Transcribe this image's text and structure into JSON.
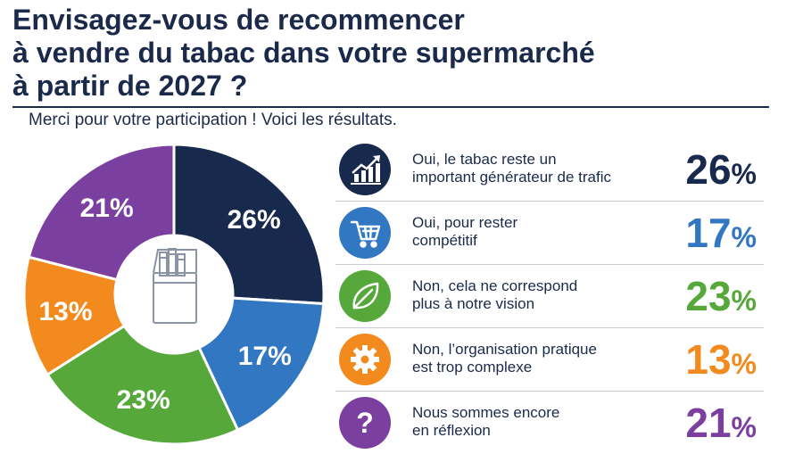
{
  "title_lines": [
    "Envisagez-vous de recommencer",
    "à vendre du tabac dans votre supermarché",
    "à partir de 2027 ?"
  ],
  "subtitle": "Merci pour votre participation ! Voici les résultats.",
  "chart_data": {
    "type": "pie",
    "donut": true,
    "unit": "%",
    "center_icon": "cigarette-pack-icon",
    "slices": [
      {
        "label": "Oui, le tabac reste un important générateur de trafic",
        "value": 26,
        "display": "26%",
        "color": "#17294d",
        "icon": "trending-up-chart-icon"
      },
      {
        "label": "Oui, pour rester compétitif",
        "value": 17,
        "display": "17%",
        "color": "#3177c2",
        "icon": "shopping-cart-icon"
      },
      {
        "label": "Non, cela ne correspond plus à notre vision",
        "value": 23,
        "display": "23%",
        "color": "#56a83a",
        "icon": "leaf-icon"
      },
      {
        "label": "Non, l'organisation pratique est trop complexe",
        "value": 13,
        "display": "13%",
        "color": "#f28a1e",
        "icon": "gear-icon"
      },
      {
        "label": "Nous sommes encore en réflexion",
        "value": 21,
        "display": "21%",
        "color": "#7b3fa0",
        "icon": "question-mark-icon"
      }
    ]
  },
  "legend_rows": [
    {
      "label": "Oui, le tabac reste un\nimportant générateur de trafic",
      "num": "26",
      "pct": "%"
    },
    {
      "label": "Oui, pour rester\ncompétitif",
      "num": "17",
      "pct": "%"
    },
    {
      "label": "Non, cela ne correspond\nplus à notre vision",
      "num": "23",
      "pct": "%"
    },
    {
      "label": "Non, l’organisation pratique\nest trop complexe",
      "num": "13",
      "pct": "%"
    },
    {
      "label": "Nous sommes encore\nen réflexion",
      "num": "21",
      "pct": "%"
    }
  ]
}
